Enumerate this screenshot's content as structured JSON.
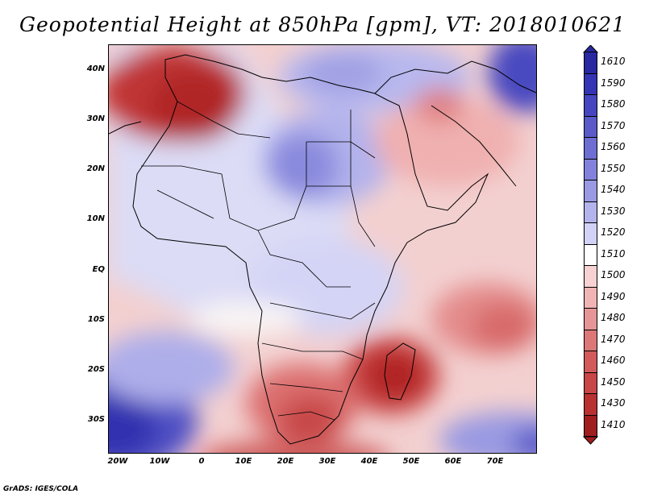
{
  "title": "Geopotential Height at 850hPa [gpm], VT: 2018010621",
  "credit": "GrADS: IGES/COLA",
  "axes": {
    "lat_labels": [
      "40N",
      "30N",
      "20N",
      "10N",
      "EQ",
      "10S",
      "20S",
      "30S"
    ],
    "lon_labels": [
      "20W",
      "10W",
      "0",
      "10E",
      "20E",
      "30E",
      "40E",
      "50E",
      "60E",
      "70E"
    ]
  },
  "legend": {
    "labels": [
      "1610",
      "1590",
      "1580",
      "1570",
      "1560",
      "1550",
      "1540",
      "1530",
      "1520",
      "1510",
      "1500",
      "1490",
      "1480",
      "1470",
      "1460",
      "1450",
      "1430",
      "1410"
    ],
    "colors": [
      "#2828a0",
      "#3434b4",
      "#4646c0",
      "#5a5ac8",
      "#6e6ed2",
      "#8282dc",
      "#9a9ae4",
      "#b4b4ec",
      "#d2d2f6",
      "#ffffff",
      "#f8d2d2",
      "#f0b4b4",
      "#e69696",
      "#dc7878",
      "#d25a5a",
      "#c84646",
      "#b83232",
      "#a01e1e"
    ]
  },
  "colors": {
    "deep_red": "#b82828",
    "red": "#d65050",
    "light_red": "#f4c4c4",
    "pale_blue": "#dcdcf8",
    "blue": "#8c8ce2",
    "deep_blue": "#3c3cb6"
  }
}
